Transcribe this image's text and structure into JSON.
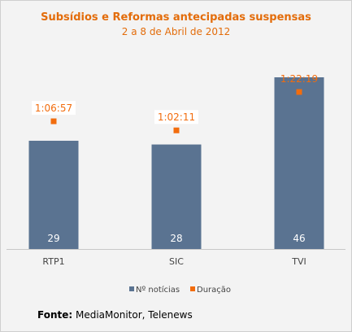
{
  "chart_data": {
    "type": "bar",
    "title": "Subsídios e Reformas antecipadas suspensas",
    "subtitle": "2 a 8 de Abril de 2012",
    "categories": [
      "RTP1",
      "SIC",
      "TVI"
    ],
    "series": [
      {
        "name": "Nº notícias",
        "values": [
          29,
          28,
          46
        ],
        "color": "#5a7391",
        "kind": "bar"
      },
      {
        "name": "Duração",
        "values": [
          "1:06:57",
          "1:02:11",
          "1:22:19"
        ],
        "seconds": [
          4017,
          3731,
          4939
        ],
        "color": "#f26c0d",
        "kind": "marker"
      }
    ],
    "ylim": [
      0,
      46
    ],
    "duration_ylim": [
      0,
      5400
    ],
    "legend": "bottom",
    "grid": false
  },
  "source": {
    "label": "Fonte:",
    "text": " MediaMonitor, Telenews"
  }
}
